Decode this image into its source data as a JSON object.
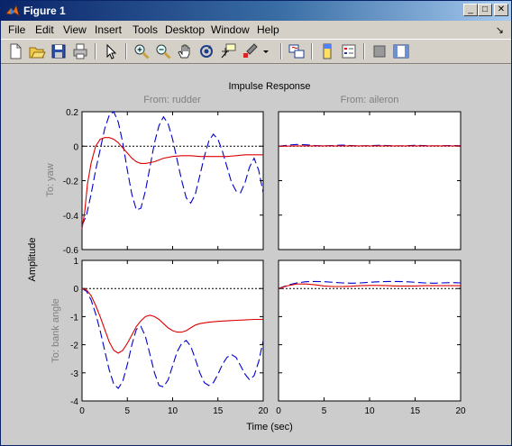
{
  "window": {
    "title": "Figure 1"
  },
  "title_buttons": {
    "minimize": "_",
    "maximize": "□",
    "close": "✕"
  },
  "menu": {
    "items": [
      "File",
      "Edit",
      "View",
      "Insert",
      "Tools",
      "Desktop",
      "Window",
      "Help"
    ],
    "dock_arrow": "↘"
  },
  "toolbar": {
    "icons": [
      "new-figure-icon",
      "open-file-icon",
      "save-icon",
      "print-icon",
      "arrow-select-icon",
      "zoom-in-icon",
      "zoom-out-icon",
      "pan-hand-icon",
      "rotate-3d-icon",
      "data-cursor-icon",
      "brush-icon",
      "link-plot-icon",
      "colorbar-icon",
      "legend-icon",
      "hide-plot-tools-icon",
      "show-plot-tools-icon"
    ]
  },
  "colors": {
    "series_1": "#0000cc",
    "series_2": "#dd0000",
    "zero_line": "#000000",
    "subtitle": "#808080"
  },
  "chart_data": {
    "type": "line",
    "title": "Impulse Response",
    "xlabel": "Time (sec)",
    "ylabel": "Amplitude",
    "columns": [
      "From: rudder",
      "From: aileron"
    ],
    "rows": [
      "To: yaw",
      "To: bank angle"
    ],
    "xlim": [
      0,
      20
    ],
    "x_ticks": [
      "0",
      "5",
      "10",
      "15",
      "20"
    ],
    "grid": false,
    "panels": [
      {
        "row": "To: yaw",
        "column": "From: rudder",
        "ylim": [
          -0.6,
          0.2
        ],
        "y_ticks": [
          "0.2",
          "0",
          "-0.2",
          "-0.4",
          "-0.6"
        ],
        "series": [
          {
            "style": "dashed",
            "color": "#0000cc",
            "x": [
              0,
              0.5,
              1,
              1.5,
              2,
              2.5,
              3,
              3.5,
              4,
              4.5,
              5,
              5.5,
              6,
              6.5,
              7,
              7.5,
              8,
              8.5,
              9,
              9.5,
              10,
              10.5,
              11,
              11.5,
              12,
              12.5,
              13,
              13.5,
              14,
              14.5,
              15,
              15.5,
              16,
              16.5,
              17,
              17.5,
              18,
              18.5,
              19,
              19.5,
              20
            ],
            "y": [
              -0.46,
              -0.4,
              -0.28,
              -0.14,
              -0.02,
              0.1,
              0.18,
              0.2,
              0.14,
              0.02,
              -0.14,
              -0.28,
              -0.37,
              -0.36,
              -0.26,
              -0.12,
              0.02,
              0.12,
              0.17,
              0.13,
              0.04,
              -0.08,
              -0.2,
              -0.3,
              -0.33,
              -0.28,
              -0.17,
              -0.06,
              0.03,
              0.07,
              0.04,
              -0.03,
              -0.12,
              -0.21,
              -0.26,
              -0.27,
              -0.21,
              -0.12,
              -0.07,
              -0.14,
              -0.27
            ]
          },
          {
            "style": "solid",
            "color": "#dd0000",
            "x": [
              0,
              0.3,
              0.6,
              1,
              1.5,
              2,
              2.5,
              3,
              3.5,
              4,
              4.5,
              5,
              5.5,
              6,
              6.5,
              7,
              8,
              9,
              10,
              11,
              12,
              13,
              14,
              15,
              16,
              17,
              18,
              19,
              20
            ],
            "y": [
              -0.48,
              -0.38,
              -0.22,
              -0.1,
              0.0,
              0.04,
              0.05,
              0.05,
              0.04,
              0.02,
              -0.01,
              -0.04,
              -0.07,
              -0.09,
              -0.1,
              -0.1,
              -0.09,
              -0.07,
              -0.06,
              -0.055,
              -0.055,
              -0.06,
              -0.06,
              -0.06,
              -0.06,
              -0.055,
              -0.05,
              -0.05,
              -0.05
            ]
          }
        ]
      },
      {
        "row": "To: yaw",
        "column": "From: aileron",
        "ylim": [
          -0.6,
          0.2
        ],
        "y_ticks": [],
        "series": [
          {
            "style": "dashed",
            "color": "#0000cc",
            "x": [
              0,
              1,
              2,
              3,
              4,
              5,
              6,
              7,
              8,
              9,
              10,
              11,
              12,
              13,
              14,
              15,
              16,
              17,
              18,
              19,
              20
            ],
            "y": [
              0,
              0.006,
              0.01,
              0.008,
              0.004,
              0.002,
              0.004,
              0.006,
              0.004,
              0.002,
              0.003,
              0.005,
              0.004,
              0.002,
              0.003,
              0.005,
              0.004,
              0.002,
              0.003,
              0.004,
              0.003
            ]
          },
          {
            "style": "solid",
            "color": "#dd0000",
            "x": [
              0,
              2,
              4,
              6,
              8,
              10,
              12,
              14,
              16,
              18,
              20
            ],
            "y": [
              0,
              0.002,
              0.002,
              0.002,
              0.002,
              0.002,
              0.002,
              0.002,
              0.002,
              0.002,
              0.002
            ]
          }
        ]
      },
      {
        "row": "To: bank angle",
        "column": "From: rudder",
        "ylim": [
          -4,
          1
        ],
        "y_ticks": [
          "1",
          "0",
          "-1",
          "-2",
          "-3",
          "-4"
        ],
        "series": [
          {
            "style": "dashed",
            "color": "#0000cc",
            "x": [
              0,
              0.5,
              1,
              1.5,
              2,
              2.5,
              3,
              3.5,
              4,
              4.5,
              5,
              5.5,
              6,
              6.5,
              7,
              7.5,
              8,
              8.5,
              9,
              9.5,
              10,
              10.5,
              11,
              11.5,
              12,
              12.5,
              13,
              13.5,
              14,
              14.5,
              15,
              15.5,
              16,
              16.5,
              17,
              17.5,
              18,
              18.5,
              19,
              19.5,
              20
            ],
            "y": [
              0,
              -0.1,
              -0.4,
              -0.9,
              -1.5,
              -2.2,
              -2.9,
              -3.4,
              -3.55,
              -3.3,
              -2.7,
              -2.0,
              -1.45,
              -1.35,
              -1.7,
              -2.35,
              -3.0,
              -3.45,
              -3.5,
              -3.25,
              -2.75,
              -2.25,
              -1.95,
              -1.85,
              -2.05,
              -2.5,
              -3.0,
              -3.35,
              -3.45,
              -3.35,
              -3.05,
              -2.7,
              -2.45,
              -2.35,
              -2.45,
              -2.75,
              -3.05,
              -3.25,
              -3.1,
              -2.6,
              -1.85
            ]
          },
          {
            "style": "solid",
            "color": "#dd0000",
            "x": [
              0,
              0.5,
              1,
              1.5,
              2,
              2.5,
              3,
              3.5,
              4,
              4.5,
              5,
              5.5,
              6,
              6.5,
              7,
              7.5,
              8,
              8.5,
              9,
              9.5,
              10,
              10.5,
              11,
              11.5,
              12,
              12.5,
              13,
              14,
              15,
              16,
              17,
              18,
              19,
              20
            ],
            "y": [
              0,
              -0.05,
              -0.25,
              -0.6,
              -1.0,
              -1.45,
              -1.9,
              -2.2,
              -2.3,
              -2.2,
              -1.95,
              -1.65,
              -1.35,
              -1.15,
              -1.0,
              -0.95,
              -1.0,
              -1.1,
              -1.25,
              -1.4,
              -1.5,
              -1.55,
              -1.55,
              -1.5,
              -1.4,
              -1.3,
              -1.25,
              -1.2,
              -1.17,
              -1.15,
              -1.13,
              -1.12,
              -1.1,
              -1.1
            ]
          }
        ]
      },
      {
        "row": "To: bank angle",
        "column": "From: aileron",
        "ylim": [
          -4,
          1
        ],
        "y_ticks": [],
        "series": [
          {
            "style": "dashed",
            "color": "#0000cc",
            "x": [
              0,
              1,
              2,
              3,
              4,
              5,
              6,
              7,
              8,
              9,
              10,
              11,
              12,
              13,
              14,
              15,
              16,
              17,
              18,
              19,
              20
            ],
            "y": [
              0,
              0.12,
              0.2,
              0.24,
              0.25,
              0.24,
              0.22,
              0.2,
              0.19,
              0.2,
              0.22,
              0.24,
              0.25,
              0.25,
              0.24,
              0.22,
              0.2,
              0.19,
              0.2,
              0.21,
              0.2
            ]
          },
          {
            "style": "solid",
            "color": "#dd0000",
            "x": [
              0,
              1,
              2,
              3,
              4,
              5,
              6,
              7,
              8,
              9,
              10,
              11,
              12,
              13,
              14,
              15,
              16,
              17,
              18,
              19,
              20
            ],
            "y": [
              0,
              0.1,
              0.16,
              0.16,
              0.13,
              0.09,
              0.07,
              0.07,
              0.08,
              0.1,
              0.11,
              0.11,
              0.1,
              0.09,
              0.09,
              0.09,
              0.1,
              0.1,
              0.1,
              0.1,
              0.1
            ]
          }
        ]
      }
    ]
  }
}
